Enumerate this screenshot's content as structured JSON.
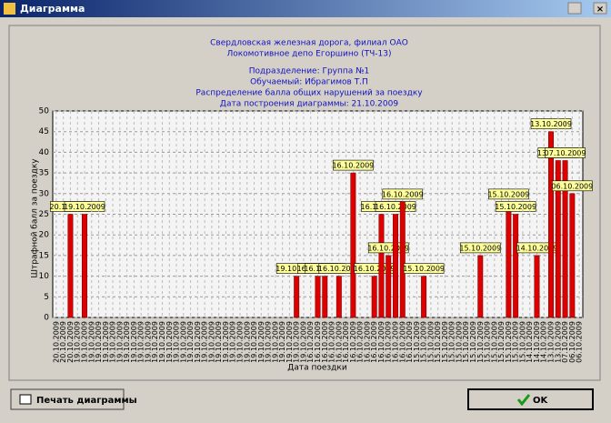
{
  "window": {
    "title": "Диаграмма",
    "print_button": "Печать диаграммы",
    "ok_button": "OK"
  },
  "chart_data": {
    "type": "bar",
    "title": [
      "Свердловская железная дорога, филиал ОАО",
      "Локомотивное депо Егоршино (ТЧ-13)",
      "Подразделение: Группа №1",
      "Обучаемый: Ибрагимов  Т.П",
      "Распределение балла общих нарушений за поездку",
      "Дата построения диаграммы: 21.10.2009"
    ],
    "y_label": "Штрафной балл за поездку",
    "x_label": "Дата поездки",
    "categories": [
      "20.10.2009",
      "20.10.2009",
      "20.10.2009",
      "19.10.2009",
      "19.10.2009",
      "19.10.2009",
      "19.10.2009",
      "19.10.2009",
      "19.10.2009",
      "19.10.2009",
      "19.10.2009",
      "19.10.2009",
      "19.10.2009",
      "19.10.2009",
      "19.10.2009",
      "19.10.2009",
      "19.10.2009",
      "19.10.2009",
      "19.10.2009",
      "19.10.2009",
      "19.10.2009",
      "19.10.2009",
      "19.10.2009",
      "19.10.2009",
      "19.10.2009",
      "19.10.2009",
      "19.10.2009",
      "19.10.2009",
      "19.10.2009",
      "19.10.2009",
      "19.10.2009",
      "19.10.2009",
      "19.10.2009",
      "19.10.2009",
      "19.10.2009",
      "19.10.2009",
      "16.10.2009",
      "16.10.2009",
      "16.10.2009",
      "16.10.2009",
      "16.10.2009",
      "16.10.2009",
      "16.10.2009",
      "16.10.2009",
      "16.10.2009",
      "16.10.2009",
      "16.10.2009",
      "16.10.2009",
      "16.10.2009",
      "16.10.2009",
      "16.10.2009",
      "15.10.2009",
      "15.10.2009",
      "15.10.2009",
      "15.10.2009",
      "15.10.2009",
      "15.10.2009",
      "15.10.2009",
      "15.10.2009",
      "15.10.2009",
      "15.10.2009",
      "15.10.2009",
      "15.10.2009",
      "15.10.2009",
      "15.10.2009",
      "15.10.2009",
      "15.10.2009",
      "14.10.2009",
      "14.10.2009",
      "14.10.2009",
      "13.10.2009",
      "13.10.2009",
      "07.10.2009",
      "06.10.2009",
      "06.10.2009"
    ],
    "values": [
      0,
      0,
      25,
      0,
      25,
      0,
      0,
      0,
      0,
      0,
      0,
      0,
      0,
      0,
      0,
      0,
      0,
      0,
      0,
      0,
      0,
      0,
      0,
      0,
      0,
      0,
      0,
      0,
      0,
      0,
      0,
      0,
      0,
      0,
      10,
      0,
      0,
      10,
      10,
      0,
      10,
      0,
      35,
      0,
      0,
      10,
      25,
      15,
      25,
      28,
      0,
      0,
      10,
      0,
      0,
      0,
      0,
      0,
      0,
      0,
      15,
      0,
      0,
      0,
      28,
      25,
      0,
      0,
      15,
      0,
      45,
      38,
      38,
      30,
      0
    ],
    "color": "#dd0000",
    "ylim": [
      0,
      50
    ],
    "yticks": [
      0,
      5,
      10,
      15,
      20,
      25,
      30,
      35,
      40,
      45,
      50
    ],
    "grid": true
  }
}
